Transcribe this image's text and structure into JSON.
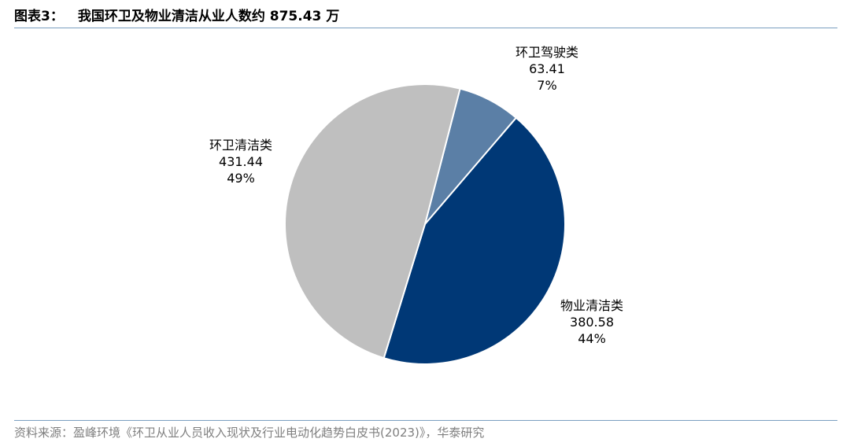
{
  "figure": {
    "number": "图表3：",
    "title": "我国环卫及物业清洁从业人数约 875.43 万"
  },
  "chart_data": {
    "type": "pie",
    "slices": [
      {
        "name": "环卫驾驶类",
        "value": 63.41,
        "percent_label": "7%",
        "color": "#5b7fa6"
      },
      {
        "name": "物业清洁类",
        "value": 380.58,
        "percent_label": "44%",
        "color": "#003876"
      },
      {
        "name": "环卫清洁类",
        "value": 431.44,
        "percent_label": "49%",
        "color": "#bfbfbf"
      }
    ],
    "start_angle_deg": 14.5,
    "direction": "clockwise"
  },
  "source": "资料来源：盈峰环境《环卫从业人员收入现状及行业电动化趋势白皮书(2023)》，华泰研究"
}
